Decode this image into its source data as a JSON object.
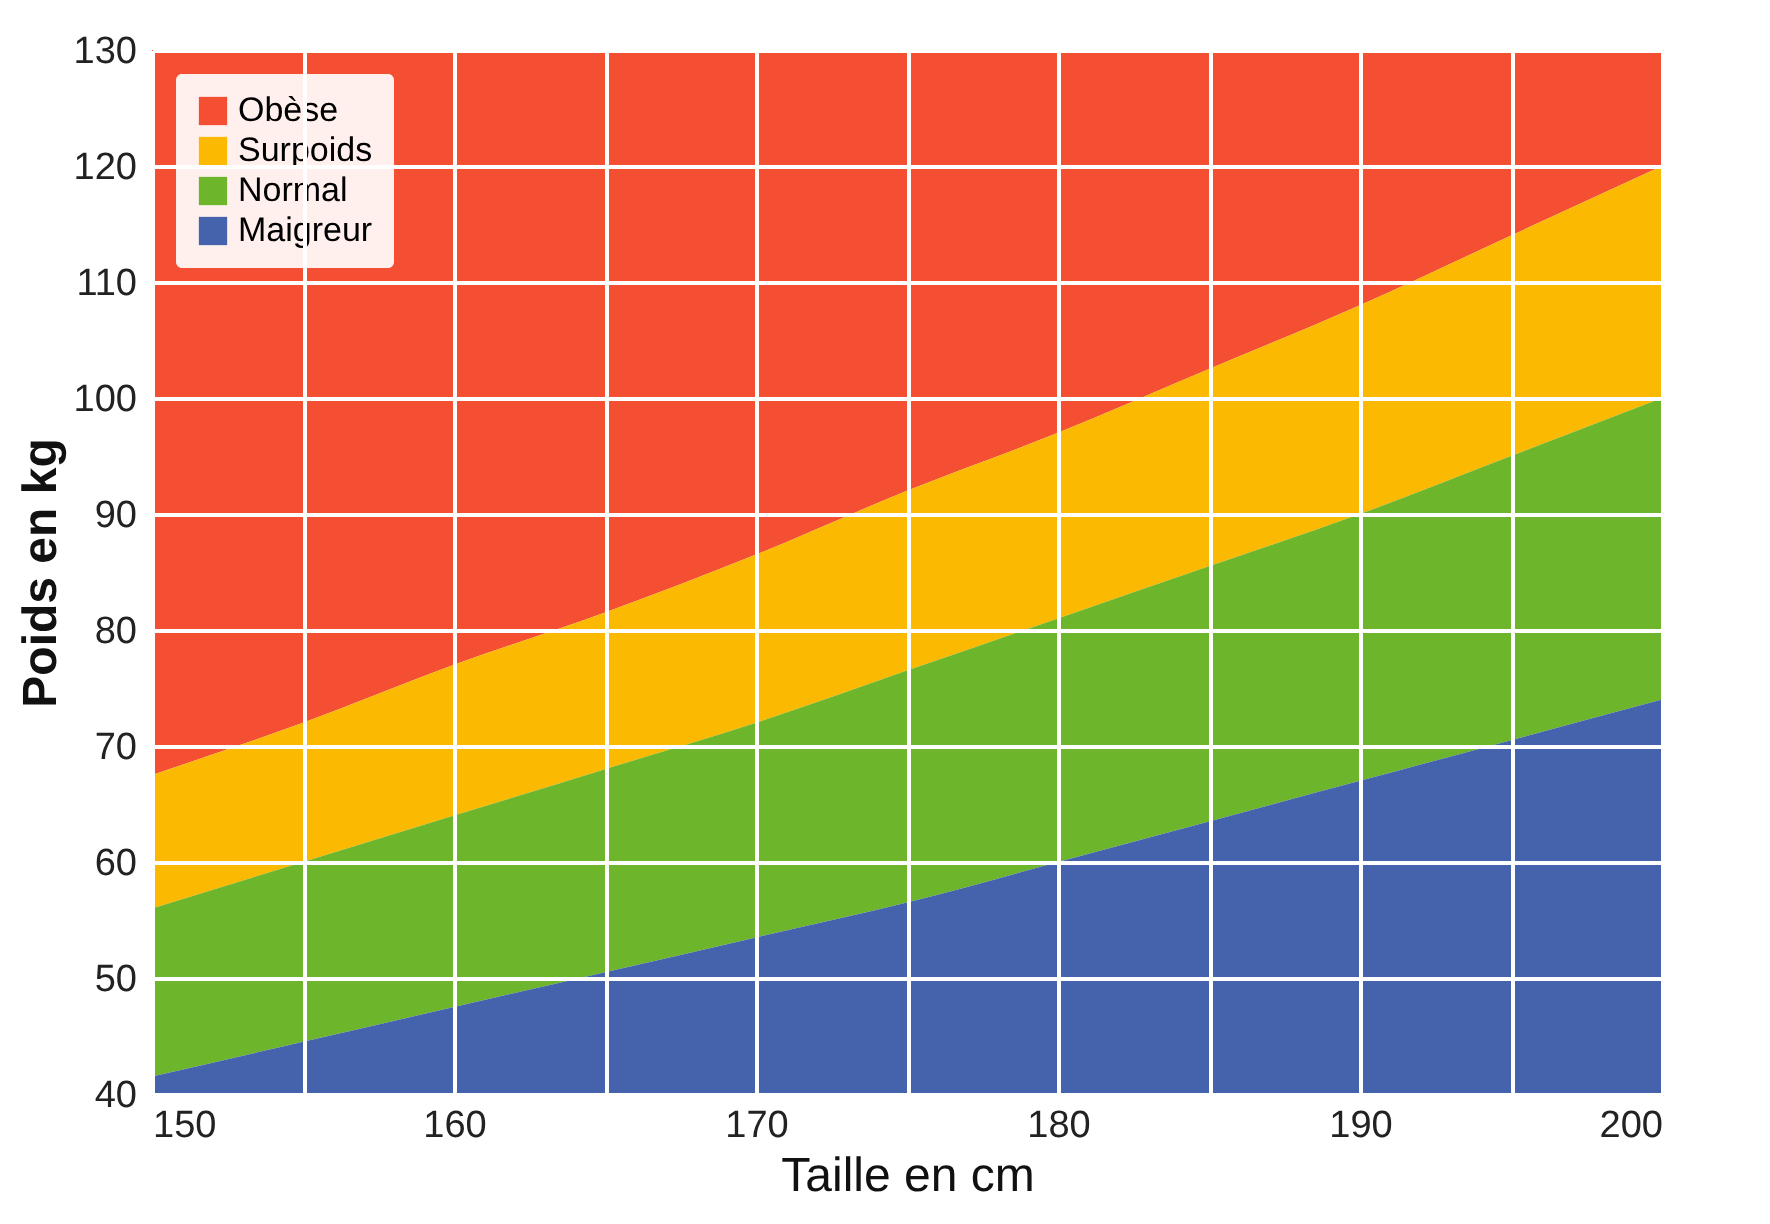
{
  "chart_data": {
    "type": "area",
    "xlabel": "Taille en cm",
    "ylabel": "Poids en kg",
    "x": [
      150,
      155,
      160,
      165,
      170,
      175,
      180,
      185,
      190,
      195,
      200
    ],
    "series": [
      {
        "name": "Obèse",
        "color": "#f44f33",
        "values": [
          130,
          130,
          130,
          130,
          130,
          130,
          130,
          130,
          130,
          130,
          130
        ]
      },
      {
        "name": "Surpoids",
        "color": "#fbb902",
        "values": [
          67.5,
          72,
          77,
          81.5,
          86.5,
          92,
          97,
          102.5,
          108,
          114,
          120
        ]
      },
      {
        "name": "Normal",
        "color": "#6db52b",
        "values": [
          56,
          60,
          64,
          68,
          72,
          76.5,
          81,
          85.5,
          90,
          95,
          100
        ]
      },
      {
        "name": "Maigreur",
        "color": "#4563ad",
        "values": [
          41.5,
          44.5,
          47.5,
          50.5,
          53.5,
          56.5,
          60,
          63.5,
          67,
          70.5,
          74
        ]
      }
    ],
    "xlim": [
      150,
      200
    ],
    "xticks": [
      150,
      {
        "value": 155,
        "label": null
      },
      160,
      {
        "value": 165,
        "label": null
      },
      170,
      {
        "value": 175,
        "label": null
      },
      180,
      {
        "value": 185,
        "label": null
      },
      190,
      {
        "value": 195,
        "label": null
      },
      200
    ],
    "ylim": [
      40,
      130
    ],
    "yticks": [
      40,
      50,
      60,
      70,
      80,
      90,
      100,
      110,
      120,
      130
    ],
    "grid": true,
    "legend": "top left"
  }
}
